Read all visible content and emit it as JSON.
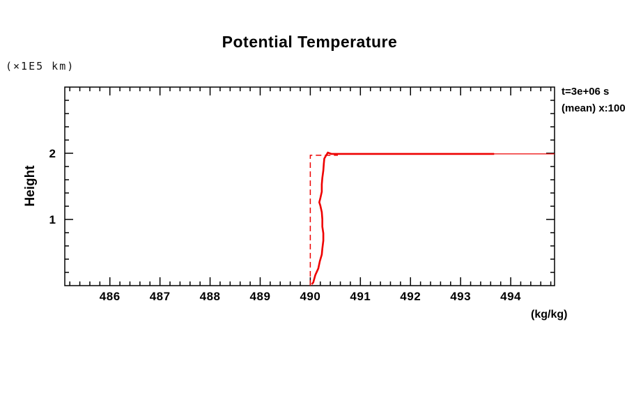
{
  "title": "Potential Temperature",
  "y_unit_label": "(×1E5 km)",
  "y_axis_label": "Height",
  "x_unit_label": "(kg/kg)",
  "legend": {
    "line1": "t=3e+06 s",
    "line2": "(mean) x:100"
  },
  "colors": {
    "series": "#ee0000",
    "axis": "#000000",
    "background": "#ffffff"
  },
  "chart_data": {
    "type": "line",
    "title": "Potential Temperature",
    "xlabel": "(kg/kg)",
    "ylabel": "Height (×1E5 km)",
    "xlim": [
      485.1,
      494.875
    ],
    "ylim": [
      0,
      3.0
    ],
    "x_major_ticks": [
      486,
      487,
      488,
      489,
      490,
      491,
      492,
      493,
      494
    ],
    "x_minor_step": 0.2,
    "y_major_ticks": [
      1,
      2
    ],
    "y_minor_step": 0.2,
    "grid": false,
    "legend_position": "outside-top-right",
    "legend_entries": [
      "t=3e+06 s",
      "(mean) x:100"
    ],
    "series": [
      {
        "name": "initial-profile-dashed",
        "style": "dashed",
        "width": 1.5,
        "points": [
          [
            490.0,
            0.0
          ],
          [
            490.0,
            1.97
          ],
          [
            490.55,
            1.97
          ]
        ]
      },
      {
        "name": "profile-thin",
        "style": "solid",
        "width": 1.2,
        "points": [
          [
            490.4,
            1.99
          ],
          [
            494.875,
            1.99
          ]
        ]
      },
      {
        "name": "mean-profile-solid",
        "style": "solid",
        "width": 2.6,
        "points": [
          [
            490.03,
            0.02
          ],
          [
            490.06,
            0.05
          ],
          [
            490.1,
            0.16
          ],
          [
            490.16,
            0.26
          ],
          [
            490.19,
            0.37
          ],
          [
            490.23,
            0.47
          ],
          [
            490.24,
            0.56
          ],
          [
            490.26,
            0.68
          ],
          [
            490.26,
            0.79
          ],
          [
            490.24,
            0.89
          ],
          [
            490.24,
            1.0
          ],
          [
            490.23,
            1.11
          ],
          [
            490.2,
            1.21
          ],
          [
            490.18,
            1.26
          ],
          [
            490.2,
            1.32
          ],
          [
            490.23,
            1.42
          ],
          [
            490.23,
            1.53
          ],
          [
            490.24,
            1.63
          ],
          [
            490.26,
            1.74
          ],
          [
            490.27,
            1.84
          ],
          [
            490.28,
            1.92
          ],
          [
            490.31,
            1.96
          ],
          [
            490.35,
            2.01
          ],
          [
            490.42,
            1.99
          ],
          [
            493.67,
            1.99
          ]
        ]
      }
    ]
  }
}
